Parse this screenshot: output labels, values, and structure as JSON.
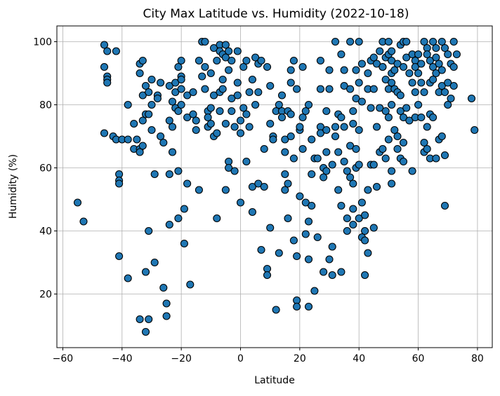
{
  "chart_data": {
    "type": "scatter",
    "title": "City Max Latitude vs. Humidity (2022-10-18)",
    "xlabel": "Latitude",
    "ylabel": "Humidity (%)",
    "xlim": [
      -62,
      85
    ],
    "ylim": [
      3,
      105
    ],
    "xticks": [
      -60,
      -40,
      -20,
      0,
      20,
      40,
      60,
      80
    ],
    "yticks": [
      20,
      40,
      60,
      80,
      100
    ],
    "grid": true,
    "marker_color": "#1f77b4",
    "marker_edge_color": "#000000",
    "points": [
      [
        -55,
        49
      ],
      [
        -53,
        43
      ],
      [
        -46,
        99
      ],
      [
        -46,
        92
      ],
      [
        -45,
        97
      ],
      [
        -45,
        89
      ],
      [
        -45,
        88
      ],
      [
        -45,
        87
      ],
      [
        -46,
        71
      ],
      [
        -42,
        97
      ],
      [
        -43,
        70
      ],
      [
        -42,
        69
      ],
      [
        -41,
        58
      ],
      [
        -41,
        56
      ],
      [
        -41,
        55
      ],
      [
        -40,
        69
      ],
      [
        -41,
        32
      ],
      [
        -38,
        80
      ],
      [
        -38,
        69
      ],
      [
        -38,
        25
      ],
      [
        -36,
        66
      ],
      [
        -36,
        74
      ],
      [
        -35,
        69
      ],
      [
        -34,
        66
      ],
      [
        -34,
        93
      ],
      [
        -34,
        90
      ],
      [
        -34,
        65
      ],
      [
        -33,
        94
      ],
      [
        -33,
        83
      ],
      [
        -33,
        75
      ],
      [
        -33,
        67
      ],
      [
        -32,
        86
      ],
      [
        -32,
        77
      ],
      [
        -31,
        84
      ],
      [
        -31,
        77
      ],
      [
        -31,
        40
      ],
      [
        -32,
        27
      ],
      [
        -32,
        8
      ],
      [
        -31,
        12
      ],
      [
        -34,
        12
      ],
      [
        -30,
        88
      ],
      [
        -30,
        80
      ],
      [
        -30,
        72
      ],
      [
        -29,
        58
      ],
      [
        -29,
        30
      ],
      [
        -28,
        83
      ],
      [
        -28,
        82
      ],
      [
        -27,
        87
      ],
      [
        -27,
        70
      ],
      [
        -26,
        68
      ],
      [
        -26,
        22
      ],
      [
        -25,
        17
      ],
      [
        -25,
        13
      ],
      [
        -24,
        86
      ],
      [
        -24,
        75
      ],
      [
        -24,
        58
      ],
      [
        -24,
        42
      ],
      [
        -23,
        81
      ],
      [
        -23,
        73
      ],
      [
        -23,
        65
      ],
      [
        -22,
        87
      ],
      [
        -22,
        84
      ],
      [
        -22,
        79
      ],
      [
        -21,
        92
      ],
      [
        -21,
        78
      ],
      [
        -21,
        59
      ],
      [
        -21,
        44
      ],
      [
        -20,
        94
      ],
      [
        -20,
        89
      ],
      [
        -20,
        88
      ],
      [
        -20,
        85
      ],
      [
        -20,
        80
      ],
      [
        -19,
        47
      ],
      [
        -19,
        36
      ],
      [
        -18,
        83
      ],
      [
        -18,
        76
      ],
      [
        -18,
        55
      ],
      [
        -17,
        23
      ],
      [
        -16,
        84
      ],
      [
        -16,
        77
      ],
      [
        -15,
        75
      ],
      [
        -15,
        72
      ],
      [
        -14,
        53
      ],
      [
        -14,
        94
      ],
      [
        -13,
        100
      ],
      [
        -12,
        100
      ],
      [
        -13,
        89
      ],
      [
        -12,
        92
      ],
      [
        -12,
        85
      ],
      [
        -11,
        78
      ],
      [
        -11,
        76
      ],
      [
        -11,
        73
      ],
      [
        -10,
        90
      ],
      [
        -10,
        79
      ],
      [
        -10,
        74
      ],
      [
        -9,
        98
      ],
      [
        -9,
        83
      ],
      [
        -9,
        70
      ],
      [
        -8,
        94
      ],
      [
        -8,
        71
      ],
      [
        -8,
        44
      ],
      [
        -7,
        99
      ],
      [
        -7,
        97
      ],
      [
        -7,
        84
      ],
      [
        -7,
        78
      ],
      [
        -6,
        96
      ],
      [
        -6,
        88
      ],
      [
        -6,
        85
      ],
      [
        -5,
        99
      ],
      [
        -5,
        95
      ],
      [
        -5,
        74
      ],
      [
        -5,
        53
      ],
      [
        -4,
        97
      ],
      [
        -4,
        91
      ],
      [
        -4,
        62
      ],
      [
        -4,
        60
      ],
      [
        -3,
        94
      ],
      [
        -3,
        82
      ],
      [
        -3,
        78
      ],
      [
        -2,
        73
      ],
      [
        -2,
        59
      ],
      [
        -1,
        97
      ],
      [
        -1,
        87
      ],
      [
        -1,
        83
      ],
      [
        0,
        75
      ],
      [
        0,
        71
      ],
      [
        0,
        49
      ],
      [
        1,
        92
      ],
      [
        1,
        79
      ],
      [
        2,
        77
      ],
      [
        2,
        94
      ],
      [
        2,
        62
      ],
      [
        3,
        84
      ],
      [
        3,
        73
      ],
      [
        4,
        88
      ],
      [
        4,
        54
      ],
      [
        4,
        46
      ],
      [
        5,
        95
      ],
      [
        5,
        80
      ],
      [
        6,
        93
      ],
      [
        6,
        84
      ],
      [
        6,
        55
      ],
      [
        7,
        34
      ],
      [
        7,
        94
      ],
      [
        8,
        54
      ],
      [
        8,
        66
      ],
      [
        9,
        92
      ],
      [
        9,
        28
      ],
      [
        9,
        26
      ],
      [
        10,
        86
      ],
      [
        10,
        74
      ],
      [
        10,
        41
      ],
      [
        11,
        70
      ],
      [
        11,
        69
      ],
      [
        12,
        15
      ],
      [
        12,
        78
      ],
      [
        13,
        80
      ],
      [
        13,
        33
      ],
      [
        14,
        83
      ],
      [
        14,
        78
      ],
      [
        14,
        76
      ],
      [
        15,
        69
      ],
      [
        15,
        65
      ],
      [
        15,
        58
      ],
      [
        15,
        53
      ],
      [
        16,
        55
      ],
      [
        16,
        44
      ],
      [
        16,
        78
      ],
      [
        17,
        87
      ],
      [
        17,
        91
      ],
      [
        17,
        77
      ],
      [
        17,
        70
      ],
      [
        18,
        63
      ],
      [
        18,
        37
      ],
      [
        18,
        94
      ],
      [
        19,
        85
      ],
      [
        19,
        32
      ],
      [
        19,
        18
      ],
      [
        19,
        16
      ],
      [
        20,
        72
      ],
      [
        20,
        73
      ],
      [
        20,
        51
      ],
      [
        21,
        92
      ],
      [
        21,
        76
      ],
      [
        21,
        66
      ],
      [
        22,
        49
      ],
      [
        22,
        39
      ],
      [
        22,
        78
      ],
      [
        23,
        80
      ],
      [
        23,
        43
      ],
      [
        23,
        16
      ],
      [
        23,
        31
      ],
      [
        24,
        69
      ],
      [
        24,
        58
      ],
      [
        24,
        48
      ],
      [
        25,
        63
      ],
      [
        25,
        21
      ],
      [
        26,
        63
      ],
      [
        26,
        38
      ],
      [
        27,
        85
      ],
      [
        27,
        94
      ],
      [
        27,
        73
      ],
      [
        27,
        71
      ],
      [
        28,
        60
      ],
      [
        28,
        57
      ],
      [
        28,
        27
      ],
      [
        29,
        78
      ],
      [
        29,
        72
      ],
      [
        29,
        65
      ],
      [
        29,
        59
      ],
      [
        30,
        91
      ],
      [
        30,
        85
      ],
      [
        30,
        31
      ],
      [
        31,
        35
      ],
      [
        31,
        26
      ],
      [
        31,
        61
      ],
      [
        32,
        100
      ],
      [
        32,
        73
      ],
      [
        32,
        70
      ],
      [
        33,
        77
      ],
      [
        33,
        65
      ],
      [
        33,
        53
      ],
      [
        34,
        96
      ],
      [
        34,
        76
      ],
      [
        34,
        48
      ],
      [
        34,
        27
      ],
      [
        35,
        91
      ],
      [
        35,
        86
      ],
      [
        35,
        73
      ],
      [
        35,
        62
      ],
      [
        36,
        44
      ],
      [
        36,
        40
      ],
      [
        36,
        59
      ],
      [
        37,
        100
      ],
      [
        37,
        85
      ],
      [
        37,
        67
      ],
      [
        37,
        57
      ],
      [
        38,
        78
      ],
      [
        38,
        74
      ],
      [
        38,
        55
      ],
      [
        38,
        47
      ],
      [
        38,
        42
      ],
      [
        39,
        91
      ],
      [
        39,
        82
      ],
      [
        39,
        66
      ],
      [
        39,
        60
      ],
      [
        40,
        100
      ],
      [
        40,
        87
      ],
      [
        40,
        72
      ],
      [
        40,
        61
      ],
      [
        40,
        44
      ],
      [
        41,
        93
      ],
      [
        41,
        81
      ],
      [
        41,
        49
      ],
      [
        41,
        38
      ],
      [
        42,
        45
      ],
      [
        42,
        40
      ],
      [
        42,
        26
      ],
      [
        42,
        37
      ],
      [
        43,
        90
      ],
      [
        43,
        85
      ],
      [
        43,
        53
      ],
      [
        43,
        33
      ],
      [
        44,
        94
      ],
      [
        44,
        79
      ],
      [
        44,
        61
      ],
      [
        45,
        95
      ],
      [
        45,
        85
      ],
      [
        45,
        61
      ],
      [
        45,
        41
      ],
      [
        46,
        93
      ],
      [
        46,
        54
      ],
      [
        46,
        73
      ],
      [
        47,
        97
      ],
      [
        47,
        79
      ],
      [
        47,
        65
      ],
      [
        48,
        100
      ],
      [
        48,
        92
      ],
      [
        48,
        66
      ],
      [
        48,
        92
      ],
      [
        49,
        95
      ],
      [
        49,
        88
      ],
      [
        49,
        63
      ],
      [
        49,
        78
      ],
      [
        50,
        96
      ],
      [
        50,
        100
      ],
      [
        50,
        85
      ],
      [
        50,
        76
      ],
      [
        50,
        69
      ],
      [
        51,
        97
      ],
      [
        51,
        94
      ],
      [
        51,
        90
      ],
      [
        51,
        87
      ],
      [
        51,
        80
      ],
      [
        51,
        59
      ],
      [
        51,
        55
      ],
      [
        52,
        91
      ],
      [
        52,
        85
      ],
      [
        52,
        72
      ],
      [
        53,
        93
      ],
      [
        53,
        84
      ],
      [
        53,
        66
      ],
      [
        53,
        70
      ],
      [
        54,
        99
      ],
      [
        54,
        83
      ],
      [
        54,
        78
      ],
      [
        54,
        63
      ],
      [
        55,
        100
      ],
      [
        55,
        92
      ],
      [
        55,
        76
      ],
      [
        55,
        68
      ],
      [
        55,
        62
      ],
      [
        56,
        100
      ],
      [
        56,
        95
      ],
      [
        56,
        79
      ],
      [
        57,
        90
      ],
      [
        57,
        75
      ],
      [
        58,
        96
      ],
      [
        58,
        87
      ],
      [
        58,
        59
      ],
      [
        59,
        94
      ],
      [
        59,
        92
      ],
      [
        59,
        84
      ],
      [
        59,
        76
      ],
      [
        60,
        96
      ],
      [
        60,
        90
      ],
      [
        60,
        80
      ],
      [
        61,
        93
      ],
      [
        61,
        87
      ],
      [
        61,
        76
      ],
      [
        62,
        100
      ],
      [
        62,
        84
      ],
      [
        62,
        68
      ],
      [
        62,
        65
      ],
      [
        63,
        98
      ],
      [
        63,
        96
      ],
      [
        63,
        73
      ],
      [
        63,
        66
      ],
      [
        64,
        94
      ],
      [
        64,
        87
      ],
      [
        64,
        63
      ],
      [
        64,
        77
      ],
      [
        65,
        100
      ],
      [
        65,
        92
      ],
      [
        65,
        88
      ],
      [
        65,
        76
      ],
      [
        66,
        98
      ],
      [
        66,
        95
      ],
      [
        66,
        90
      ],
      [
        66,
        63
      ],
      [
        67,
        93
      ],
      [
        67,
        84
      ],
      [
        67,
        69
      ],
      [
        68,
        100
      ],
      [
        68,
        91
      ],
      [
        68,
        86
      ],
      [
        68,
        70
      ],
      [
        69,
        98
      ],
      [
        69,
        84
      ],
      [
        69,
        64
      ],
      [
        69,
        48
      ],
      [
        70,
        96
      ],
      [
        70,
        87
      ],
      [
        70,
        80
      ],
      [
        71,
        93
      ],
      [
        71,
        82
      ],
      [
        72,
        100
      ],
      [
        72,
        92
      ],
      [
        72,
        86
      ],
      [
        73,
        96
      ],
      [
        78,
        82
      ],
      [
        79,
        72
      ]
    ]
  }
}
